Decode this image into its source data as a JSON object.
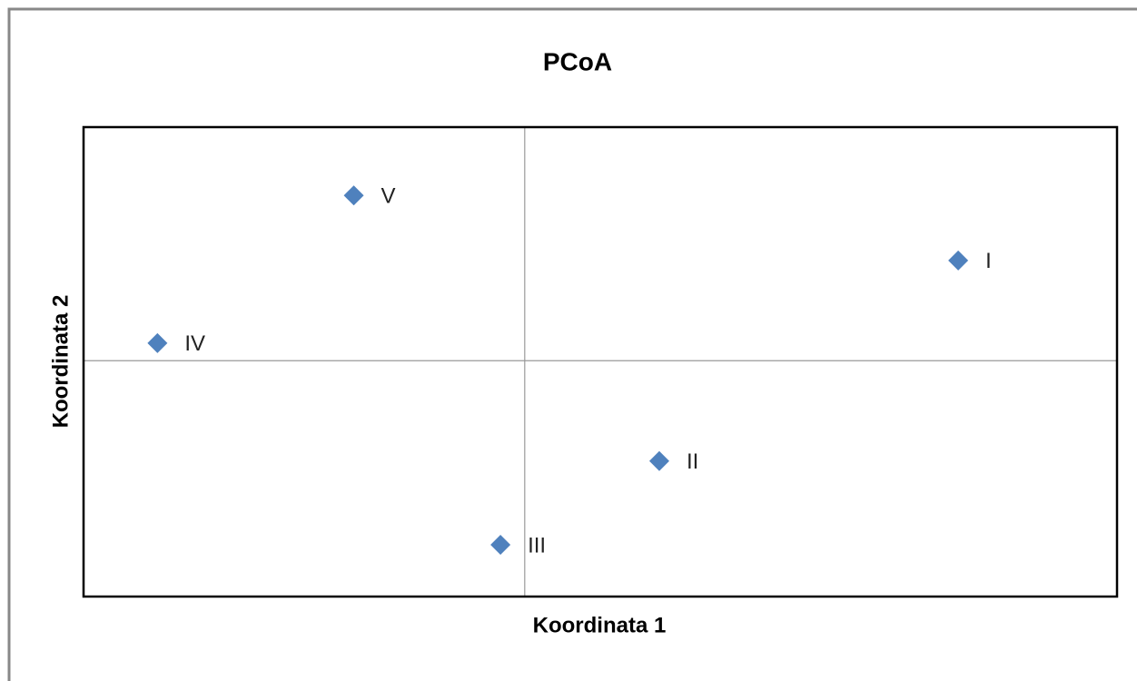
{
  "chart_data": {
    "type": "scatter",
    "title": "PCoA",
    "x_label": "Koordinata 1",
    "y_label": "Koordinata 2",
    "series": [
      {
        "color": "#4f81bd",
        "x": [
          0.393,
          0.122,
          -0.022,
          -0.333,
          -0.155
        ],
        "values": [
          0.091,
          -0.091,
          -0.167,
          0.016,
          0.15
        ],
        "labels": [
          "I",
          "II",
          "III",
          "IV",
          "V"
        ]
      }
    ],
    "xlim": [
      -0.4,
      0.537
    ],
    "ylim": [
      -0.214,
      0.212
    ]
  }
}
